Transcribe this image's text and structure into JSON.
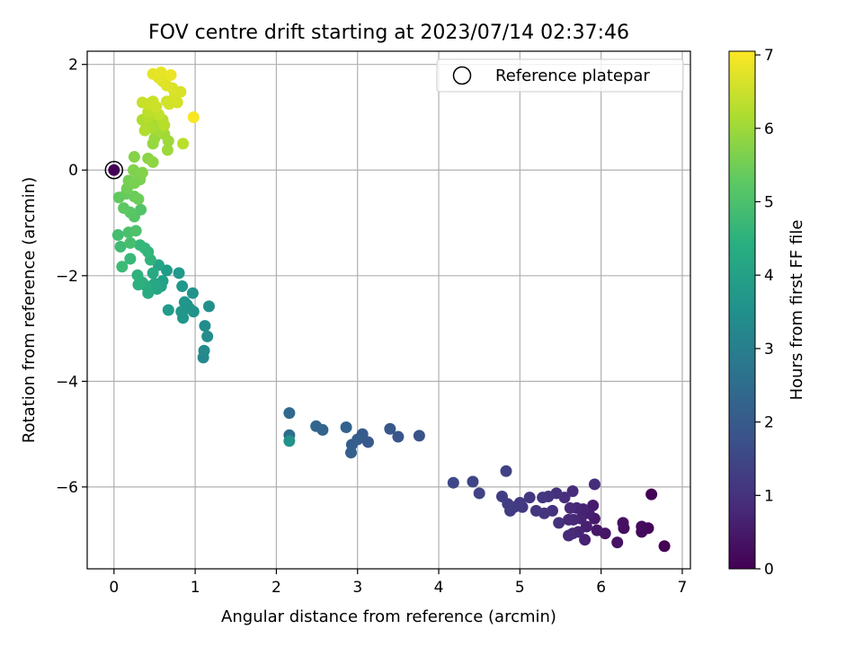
{
  "chart_data": {
    "type": "scatter",
    "title": "FOV centre drift starting at 2023/07/14 02:37:46",
    "xlabel": "Angular distance from reference (arcmin)",
    "ylabel": "Rotation from reference (arcmin)",
    "xlim": [
      -0.33,
      7.1
    ],
    "ylim": [
      -7.55,
      2.25
    ],
    "xticks": [
      0,
      1,
      2,
      3,
      4,
      5,
      6,
      7
    ],
    "yticks": [
      -6,
      -4,
      -2,
      0,
      2
    ],
    "grid": true,
    "colormap": "viridis",
    "colorbar": {
      "label": "Hours from first FF file",
      "range": [
        0,
        7.05
      ],
      "ticks": [
        0,
        1,
        2,
        3,
        4,
        5,
        6,
        7
      ]
    },
    "legend": {
      "placement": "top-right",
      "entries": [
        "Reference platepar"
      ]
    },
    "reference_point": {
      "x": 0,
      "y": 0,
      "c": 0
    },
    "points": [
      {
        "x": 6.78,
        "y": -7.12,
        "c": 0.0
      },
      {
        "x": 6.62,
        "y": -6.14,
        "c": 0.05
      },
      {
        "x": 6.58,
        "y": -6.78,
        "c": 0.1
      },
      {
        "x": 6.5,
        "y": -6.85,
        "c": 0.15
      },
      {
        "x": 6.5,
        "y": -6.75,
        "c": 0.2
      },
      {
        "x": 6.28,
        "y": -6.78,
        "c": 0.25
      },
      {
        "x": 6.27,
        "y": -6.68,
        "c": 0.3
      },
      {
        "x": 6.2,
        "y": -7.05,
        "c": 0.35
      },
      {
        "x": 6.05,
        "y": -6.88,
        "c": 0.4
      },
      {
        "x": 5.95,
        "y": -6.82,
        "c": 0.45
      },
      {
        "x": 5.92,
        "y": -6.6,
        "c": 0.5
      },
      {
        "x": 5.9,
        "y": -6.35,
        "c": 0.55
      },
      {
        "x": 5.85,
        "y": -6.5,
        "c": 0.6
      },
      {
        "x": 5.82,
        "y": -6.75,
        "c": 0.62
      },
      {
        "x": 5.8,
        "y": -7.0,
        "c": 0.65
      },
      {
        "x": 5.78,
        "y": -6.42,
        "c": 0.68
      },
      {
        "x": 5.75,
        "y": -6.6,
        "c": 0.7
      },
      {
        "x": 5.72,
        "y": -6.85,
        "c": 0.72
      },
      {
        "x": 5.7,
        "y": -6.4,
        "c": 0.75
      },
      {
        "x": 5.66,
        "y": -6.62,
        "c": 0.78
      },
      {
        "x": 5.65,
        "y": -6.88,
        "c": 0.8
      },
      {
        "x": 5.62,
        "y": -6.4,
        "c": 0.82
      },
      {
        "x": 5.6,
        "y": -6.62,
        "c": 0.85
      },
      {
        "x": 5.6,
        "y": -6.92,
        "c": 0.88
      },
      {
        "x": 5.65,
        "y": -6.08,
        "c": 0.9
      },
      {
        "x": 5.92,
        "y": -5.95,
        "c": 0.92
      },
      {
        "x": 5.55,
        "y": -6.2,
        "c": 0.95
      },
      {
        "x": 5.48,
        "y": -6.68,
        "c": 0.98
      },
      {
        "x": 5.45,
        "y": -6.12,
        "c": 1.0
      },
      {
        "x": 5.4,
        "y": -6.45,
        "c": 1.02
      },
      {
        "x": 5.35,
        "y": -6.18,
        "c": 1.05
      },
      {
        "x": 5.3,
        "y": -6.5,
        "c": 1.08
      },
      {
        "x": 5.28,
        "y": -6.2,
        "c": 1.1
      },
      {
        "x": 5.2,
        "y": -6.45,
        "c": 1.12
      },
      {
        "x": 5.12,
        "y": -6.2,
        "c": 1.15
      },
      {
        "x": 5.03,
        "y": -6.38,
        "c": 1.18
      },
      {
        "x": 5.0,
        "y": -6.3,
        "c": 1.2
      },
      {
        "x": 4.93,
        "y": -6.38,
        "c": 1.22
      },
      {
        "x": 4.88,
        "y": -6.45,
        "c": 1.25
      },
      {
        "x": 4.85,
        "y": -6.32,
        "c": 1.28
      },
      {
        "x": 4.78,
        "y": -6.18,
        "c": 1.3
      },
      {
        "x": 4.83,
        "y": -5.7,
        "c": 1.35
      },
      {
        "x": 4.5,
        "y": -6.12,
        "c": 1.4
      },
      {
        "x": 4.42,
        "y": -5.9,
        "c": 1.45
      },
      {
        "x": 4.18,
        "y": -5.92,
        "c": 1.5
      },
      {
        "x": 3.76,
        "y": -5.03,
        "c": 1.8
      },
      {
        "x": 3.5,
        "y": -5.05,
        "c": 1.85
      },
      {
        "x": 3.4,
        "y": -4.9,
        "c": 1.9
      },
      {
        "x": 3.13,
        "y": -5.15,
        "c": 1.95
      },
      {
        "x": 3.06,
        "y": -5.0,
        "c": 2.0
      },
      {
        "x": 3.0,
        "y": -5.1,
        "c": 2.05
      },
      {
        "x": 2.93,
        "y": -5.2,
        "c": 2.1
      },
      {
        "x": 2.92,
        "y": -5.35,
        "c": 2.15
      },
      {
        "x": 2.86,
        "y": -4.87,
        "c": 2.2
      },
      {
        "x": 2.57,
        "y": -4.92,
        "c": 2.25
      },
      {
        "x": 2.49,
        "y": -4.85,
        "c": 2.3
      },
      {
        "x": 2.16,
        "y": -4.6,
        "c": 2.4
      },
      {
        "x": 2.16,
        "y": -5.02,
        "c": 2.5
      },
      {
        "x": 2.16,
        "y": -5.13,
        "c": 3.6
      },
      {
        "x": 1.1,
        "y": -3.55,
        "c": 3.3
      },
      {
        "x": 1.11,
        "y": -3.42,
        "c": 3.35
      },
      {
        "x": 1.15,
        "y": -3.15,
        "c": 3.4
      },
      {
        "x": 1.12,
        "y": -2.95,
        "c": 3.45
      },
      {
        "x": 1.17,
        "y": -2.58,
        "c": 3.5
      },
      {
        "x": 0.98,
        "y": -2.68,
        "c": 3.55
      },
      {
        "x": 0.97,
        "y": -2.33,
        "c": 3.6
      },
      {
        "x": 0.93,
        "y": -2.62,
        "c": 3.62
      },
      {
        "x": 0.9,
        "y": -2.55,
        "c": 3.65
      },
      {
        "x": 0.87,
        "y": -2.5,
        "c": 3.68
      },
      {
        "x": 0.85,
        "y": -2.8,
        "c": 3.7
      },
      {
        "x": 0.83,
        "y": -2.68,
        "c": 3.72
      },
      {
        "x": 0.84,
        "y": -2.2,
        "c": 3.75
      },
      {
        "x": 0.8,
        "y": -1.95,
        "c": 3.8
      },
      {
        "x": 0.67,
        "y": -2.65,
        "c": 3.85
      },
      {
        "x": 0.65,
        "y": -1.9,
        "c": 3.9
      },
      {
        "x": 0.6,
        "y": -2.1,
        "c": 4.0
      },
      {
        "x": 0.58,
        "y": -2.2,
        "c": 4.05
      },
      {
        "x": 0.55,
        "y": -1.8,
        "c": 4.1
      },
      {
        "x": 0.53,
        "y": -2.25,
        "c": 4.15
      },
      {
        "x": 0.5,
        "y": -2.15,
        "c": 4.2
      },
      {
        "x": 0.48,
        "y": -1.95,
        "c": 4.25
      },
      {
        "x": 0.42,
        "y": -2.33,
        "c": 4.3
      },
      {
        "x": 0.4,
        "y": -2.2,
        "c": 4.35
      },
      {
        "x": 0.35,
        "y": -2.13,
        "c": 4.4
      },
      {
        "x": 0.3,
        "y": -2.17,
        "c": 4.45
      },
      {
        "x": 0.29,
        "y": -1.99,
        "c": 4.5
      },
      {
        "x": 0.45,
        "y": -1.7,
        "c": 4.55
      },
      {
        "x": 0.42,
        "y": -1.55,
        "c": 4.6
      },
      {
        "x": 0.38,
        "y": -1.48,
        "c": 4.65
      },
      {
        "x": 0.32,
        "y": -1.42,
        "c": 4.7
      },
      {
        "x": 0.2,
        "y": -1.68,
        "c": 4.75
      },
      {
        "x": 0.1,
        "y": -1.83,
        "c": 4.8
      },
      {
        "x": 0.08,
        "y": -1.45,
        "c": 4.85
      },
      {
        "x": 0.05,
        "y": -1.23,
        "c": 4.9
      },
      {
        "x": 0.2,
        "y": -1.38,
        "c": 4.95
      },
      {
        "x": 0.18,
        "y": -1.18,
        "c": 5.0
      },
      {
        "x": 0.27,
        "y": -1.15,
        "c": 5.05
      },
      {
        "x": 0.33,
        "y": -0.75,
        "c": 5.1
      },
      {
        "x": 0.25,
        "y": -0.88,
        "c": 5.15
      },
      {
        "x": 0.2,
        "y": -0.8,
        "c": 5.2
      },
      {
        "x": 0.12,
        "y": -0.72,
        "c": 5.25
      },
      {
        "x": 0.06,
        "y": -0.52,
        "c": 5.3
      },
      {
        "x": 0.15,
        "y": -0.45,
        "c": 5.35
      },
      {
        "x": 0.25,
        "y": -0.5,
        "c": 5.4
      },
      {
        "x": 0.3,
        "y": -0.55,
        "c": 5.45
      },
      {
        "x": 0.16,
        "y": -0.35,
        "c": 5.5
      },
      {
        "x": 0.18,
        "y": -0.2,
        "c": 5.55
      },
      {
        "x": 0.25,
        "y": -0.25,
        "c": 5.6
      },
      {
        "x": 0.32,
        "y": -0.18,
        "c": 5.62
      },
      {
        "x": 0.3,
        "y": -0.08,
        "c": 5.65
      },
      {
        "x": 0.24,
        "y": 0.0,
        "c": 5.68
      },
      {
        "x": 0.35,
        "y": -0.05,
        "c": 5.7
      },
      {
        "x": 0.25,
        "y": 0.25,
        "c": 5.75
      },
      {
        "x": 0.42,
        "y": 0.22,
        "c": 5.8
      },
      {
        "x": 0.48,
        "y": 0.15,
        "c": 5.85
      },
      {
        "x": 0.48,
        "y": 0.5,
        "c": 5.9
      },
      {
        "x": 0.5,
        "y": 0.6,
        "c": 5.95
      },
      {
        "x": 0.66,
        "y": 0.38,
        "c": 6.0
      },
      {
        "x": 0.67,
        "y": 0.55,
        "c": 6.02
      },
      {
        "x": 0.62,
        "y": 0.68,
        "c": 6.05
      },
      {
        "x": 0.58,
        "y": 0.82,
        "c": 6.08
      },
      {
        "x": 0.55,
        "y": 0.75,
        "c": 6.1
      },
      {
        "x": 0.52,
        "y": 0.9,
        "c": 6.12
      },
      {
        "x": 0.45,
        "y": 0.8,
        "c": 6.15
      },
      {
        "x": 0.4,
        "y": 0.85,
        "c": 6.18
      },
      {
        "x": 0.35,
        "y": 0.95,
        "c": 6.2
      },
      {
        "x": 0.38,
        "y": 0.75,
        "c": 6.22
      },
      {
        "x": 0.42,
        "y": 1.0,
        "c": 6.25
      },
      {
        "x": 0.6,
        "y": 0.95,
        "c": 6.28
      },
      {
        "x": 0.62,
        "y": 0.85,
        "c": 6.3
      },
      {
        "x": 0.85,
        "y": 0.5,
        "c": 6.32
      },
      {
        "x": 0.42,
        "y": 1.1,
        "c": 6.35
      },
      {
        "x": 0.5,
        "y": 1.15,
        "c": 6.38
      },
      {
        "x": 0.55,
        "y": 1.05,
        "c": 6.4
      },
      {
        "x": 0.35,
        "y": 1.28,
        "c": 6.45
      },
      {
        "x": 0.42,
        "y": 1.25,
        "c": 6.48
      },
      {
        "x": 0.48,
        "y": 1.3,
        "c": 6.5
      },
      {
        "x": 0.52,
        "y": 1.2,
        "c": 6.52
      },
      {
        "x": 0.65,
        "y": 1.3,
        "c": 6.55
      },
      {
        "x": 0.68,
        "y": 1.25,
        "c": 6.58
      },
      {
        "x": 0.78,
        "y": 1.28,
        "c": 6.6
      },
      {
        "x": 0.75,
        "y": 1.42,
        "c": 6.62
      },
      {
        "x": 0.82,
        "y": 1.48,
        "c": 6.65
      },
      {
        "x": 0.72,
        "y": 1.55,
        "c": 6.68
      },
      {
        "x": 0.65,
        "y": 1.6,
        "c": 6.7
      },
      {
        "x": 0.6,
        "y": 1.68,
        "c": 6.72
      },
      {
        "x": 0.55,
        "y": 1.75,
        "c": 6.75
      },
      {
        "x": 0.48,
        "y": 1.82,
        "c": 6.78
      },
      {
        "x": 0.58,
        "y": 1.85,
        "c": 6.8
      },
      {
        "x": 0.7,
        "y": 1.8,
        "c": 6.85
      },
      {
        "x": 0.98,
        "y": 1.0,
        "c": 7.0
      }
    ]
  }
}
